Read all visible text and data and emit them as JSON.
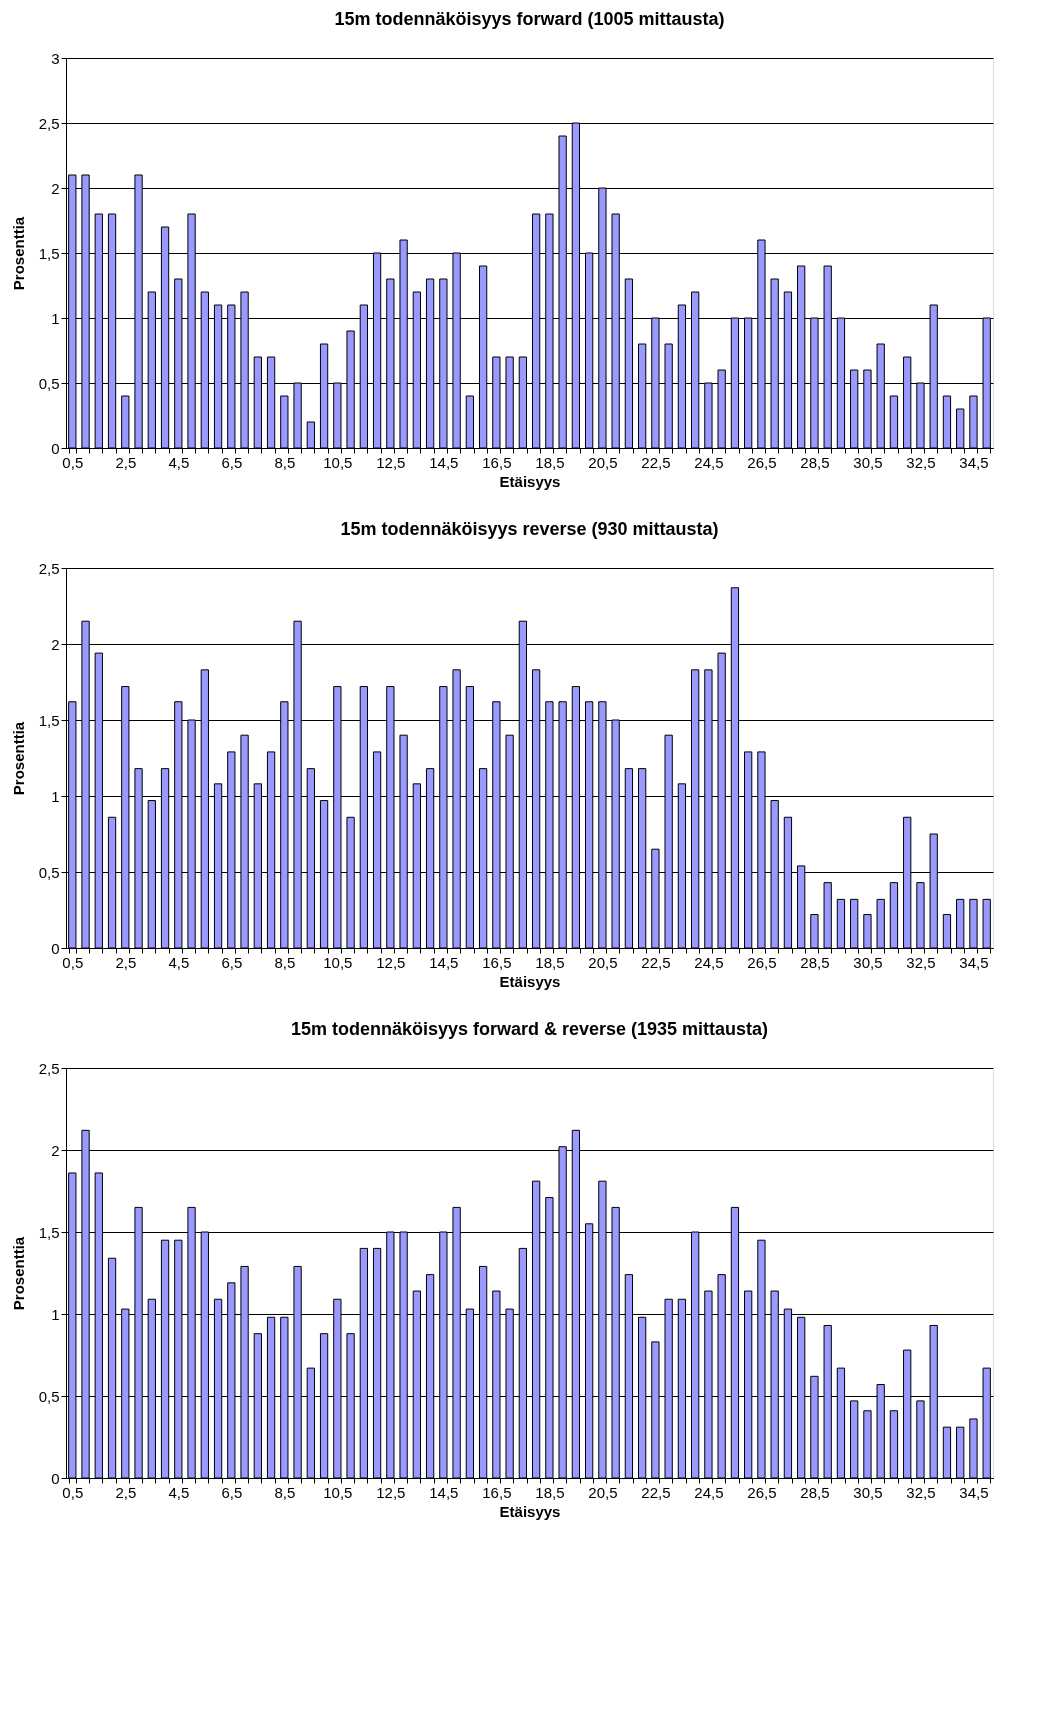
{
  "chart_data": [
    {
      "type": "bar",
      "title": "15m todennäköisyys forward (1005 mittausta)",
      "xlabel": "Etäisyys",
      "ylabel": "Prosenttia",
      "grid": "y",
      "categories": [
        "0,5",
        null,
        null,
        null,
        "2,5",
        null,
        null,
        null,
        "4,5",
        null,
        null,
        null,
        "6,5",
        null,
        null,
        null,
        "8,5",
        null,
        null,
        null,
        "10,5",
        null,
        null,
        null,
        "12,5",
        null,
        null,
        null,
        "14,5",
        null,
        null,
        null,
        "16,5",
        null,
        null,
        null,
        "18,5",
        null,
        null,
        null,
        "20,5",
        null,
        null,
        null,
        "22,5",
        null,
        null,
        null,
        "24,5",
        null,
        null,
        null,
        "26,5",
        null,
        null,
        null,
        "28,5",
        null,
        null,
        null,
        "30,5",
        null,
        null,
        null,
        "32,5",
        null,
        null,
        null,
        "34,5",
        null
      ],
      "ylim": [
        0,
        3
      ],
      "yticks": [
        0,
        {
          "value": 0.5,
          "label": "0,5"
        },
        1,
        {
          "value": 1.5,
          "label": "1,5"
        },
        2,
        {
          "value": 2.5,
          "label": "2,5"
        },
        3
      ],
      "series": [
        {
          "color": "#9999ff",
          "values": [
            2.1,
            2.1,
            1.8,
            1.8,
            0.4,
            2.1,
            1.2,
            1.7,
            1.3,
            1.8,
            1.2,
            1.1,
            1.1,
            1.2,
            0.7,
            0.7,
            0.4,
            0.5,
            0.2,
            0.8,
            0.5,
            0.9,
            1.1,
            1.5,
            1.3,
            1.6,
            1.2,
            1.3,
            1.3,
            1.5,
            0.4,
            1.4,
            0.7,
            0.7,
            0.7,
            1.8,
            1.8,
            2.4,
            2.5,
            1.5,
            2.0,
            1.8,
            1.3,
            0.8,
            1.0,
            0.8,
            1.1,
            1.2,
            0.5,
            0.6,
            1.0,
            1.0,
            1.6,
            1.3,
            1.2,
            1.4,
            1.0,
            1.4,
            1.0,
            0.6,
            0.6,
            0.8,
            0.4,
            0.7,
            0.5,
            1.1,
            0.4,
            0.3,
            0.4,
            1.0
          ]
        }
      ]
    },
    {
      "type": "bar",
      "title": "15m todennäköisyys reverse (930 mittausta)",
      "xlabel": "Etäisyys",
      "ylabel": "Prosenttia",
      "grid": "y",
      "categories": [
        "0,5",
        null,
        null,
        null,
        "2,5",
        null,
        null,
        null,
        "4,5",
        null,
        null,
        null,
        "6,5",
        null,
        null,
        null,
        "8,5",
        null,
        null,
        null,
        "10,5",
        null,
        null,
        null,
        "12,5",
        null,
        null,
        null,
        "14,5",
        null,
        null,
        null,
        "16,5",
        null,
        null,
        null,
        "18,5",
        null,
        null,
        null,
        "20,5",
        null,
        null,
        null,
        "22,5",
        null,
        null,
        null,
        "24,5",
        null,
        null,
        null,
        "26,5",
        null,
        null,
        null,
        "28,5",
        null,
        null,
        null,
        "30,5",
        null,
        null,
        null,
        "32,5",
        null,
        null,
        null,
        "34,5",
        null
      ],
      "ylim": [
        0,
        2.5
      ],
      "yticks": [
        0,
        {
          "value": 0.5,
          "label": "0,5"
        },
        1,
        {
          "value": 1.5,
          "label": "1,5"
        },
        2,
        {
          "value": 2.5,
          "label": "2,5"
        }
      ],
      "series": [
        {
          "color": "#9999ff",
          "values": [
            1.62,
            2.15,
            1.94,
            0.86,
            1.72,
            1.18,
            0.97,
            1.18,
            1.62,
            1.5,
            1.83,
            1.08,
            1.29,
            1.4,
            1.08,
            1.29,
            1.62,
            2.15,
            1.18,
            0.97,
            1.72,
            0.86,
            1.72,
            1.29,
            1.72,
            1.4,
            1.08,
            1.18,
            1.72,
            1.83,
            1.72,
            1.18,
            1.62,
            1.4,
            2.15,
            1.83,
            1.62,
            1.62,
            1.72,
            1.62,
            1.62,
            1.5,
            1.18,
            1.18,
            0.65,
            1.4,
            1.08,
            1.83,
            1.83,
            1.94,
            2.37,
            1.29,
            1.29,
            0.97,
            0.86,
            0.54,
            0.22,
            0.43,
            0.32,
            0.32,
            0.22,
            0.32,
            0.43,
            0.86,
            0.43,
            0.75,
            0.22,
            0.32,
            0.32,
            0.32
          ]
        }
      ]
    },
    {
      "type": "bar",
      "title": "15m todennäköisyys forward & reverse (1935 mittausta)",
      "xlabel": "Etäisyys",
      "ylabel": "Prosenttia",
      "grid": "y",
      "categories": [
        "0,5",
        null,
        null,
        null,
        "2,5",
        null,
        null,
        null,
        "4,5",
        null,
        null,
        null,
        "6,5",
        null,
        null,
        null,
        "8,5",
        null,
        null,
        null,
        "10,5",
        null,
        null,
        null,
        "12,5",
        null,
        null,
        null,
        "14,5",
        null,
        null,
        null,
        "16,5",
        null,
        null,
        null,
        "18,5",
        null,
        null,
        null,
        "20,5",
        null,
        null,
        null,
        "22,5",
        null,
        null,
        null,
        "24,5",
        null,
        null,
        null,
        "26,5",
        null,
        null,
        null,
        "28,5",
        null,
        null,
        null,
        "30,5",
        null,
        null,
        null,
        "32,5",
        null,
        null,
        null,
        "34,5",
        null
      ],
      "ylim": [
        0,
        2.5
      ],
      "yticks": [
        0,
        {
          "value": 0.5,
          "label": "0,5"
        },
        1,
        {
          "value": 1.5,
          "label": "1,5"
        },
        2,
        {
          "value": 2.5,
          "label": "2,5"
        }
      ],
      "series": [
        {
          "color": "#9999ff",
          "values": [
            1.86,
            2.12,
            1.86,
            1.34,
            1.03,
            1.65,
            1.09,
            1.45,
            1.45,
            1.65,
            1.5,
            1.09,
            1.19,
            1.29,
            0.88,
            0.98,
            0.98,
            1.29,
            0.67,
            0.88,
            1.09,
            0.88,
            1.4,
            1.4,
            1.5,
            1.5,
            1.14,
            1.24,
            1.5,
            1.65,
            1.03,
            1.29,
            1.14,
            1.03,
            1.4,
            1.81,
            1.71,
            2.02,
            2.12,
            1.55,
            1.81,
            1.65,
            1.24,
            0.98,
            0.83,
            1.09,
            1.09,
            1.5,
            1.14,
            1.24,
            1.65,
            1.14,
            1.45,
            1.14,
            1.03,
            0.98,
            0.62,
            0.93,
            0.67,
            0.47,
            0.41,
            0.57,
            0.41,
            0.78,
            0.47,
            0.93,
            0.31,
            0.31,
            0.36,
            0.67
          ]
        }
      ]
    }
  ]
}
